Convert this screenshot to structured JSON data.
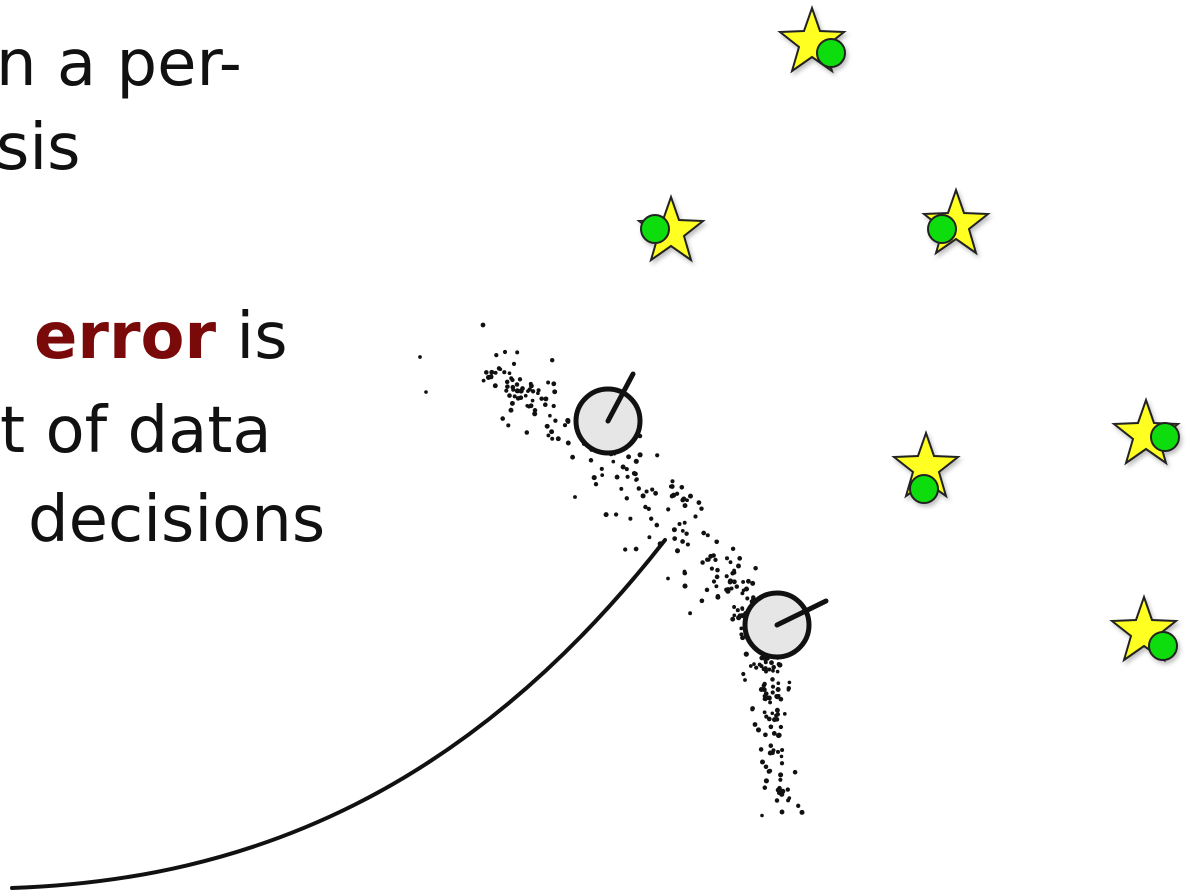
{
  "text": {
    "line1": "n a per-",
    "line2": "sis",
    "line3_emph": "error",
    "line3_rest": " is",
    "line4": "t of data",
    "line5": " decisions"
  },
  "colors": {
    "emphasis": "#7a0a0a",
    "star_fill": "#ffff22",
    "landmark_fill": "#11dd11",
    "particle": "#111111",
    "robot_fill": "#e6e6e6"
  },
  "icons": {
    "landmark": "star-with-green-dot",
    "robot": "circle-with-heading-line",
    "particles": "dot-cloud",
    "trajectory": "curved-path"
  }
}
